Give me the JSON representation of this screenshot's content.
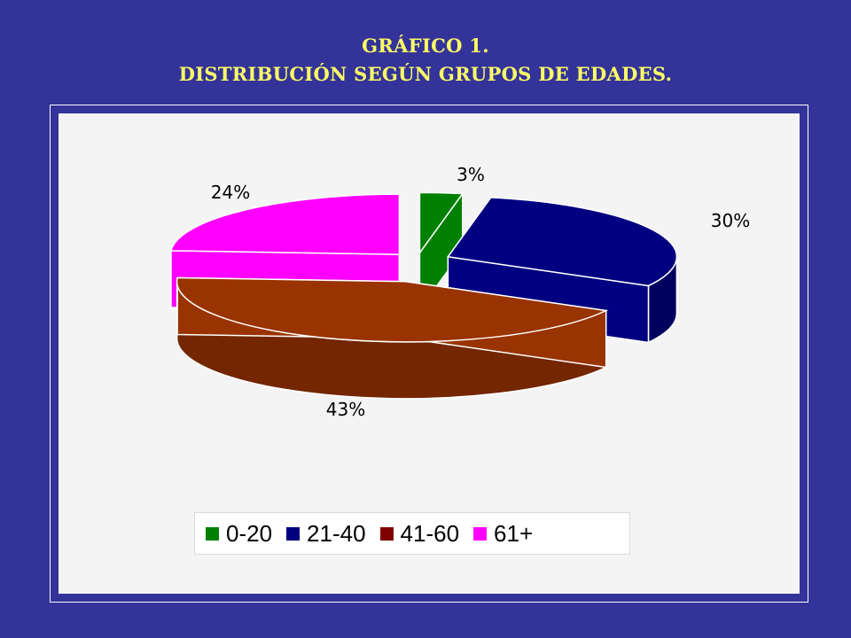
{
  "title": {
    "line1": "GRÁFICO 1.",
    "line2": "DISTRIBUCIÓN SEGÚN GRUPOS DE EDADES."
  },
  "chart_data": {
    "type": "pie",
    "style": "3d-exploded",
    "legend_position": "bottom",
    "categories": [
      "0-20",
      "21-40",
      "41-60",
      "61+"
    ],
    "values": [
      3,
      30,
      43,
      24
    ],
    "labels": [
      "3%",
      "30%",
      "43%",
      "24%"
    ],
    "colors": [
      "#008000",
      "#000080",
      "#993300",
      "#ff00ff"
    ],
    "legend_colors": [
      "#008000",
      "#000080",
      "#800000",
      "#ff00ff"
    ]
  }
}
